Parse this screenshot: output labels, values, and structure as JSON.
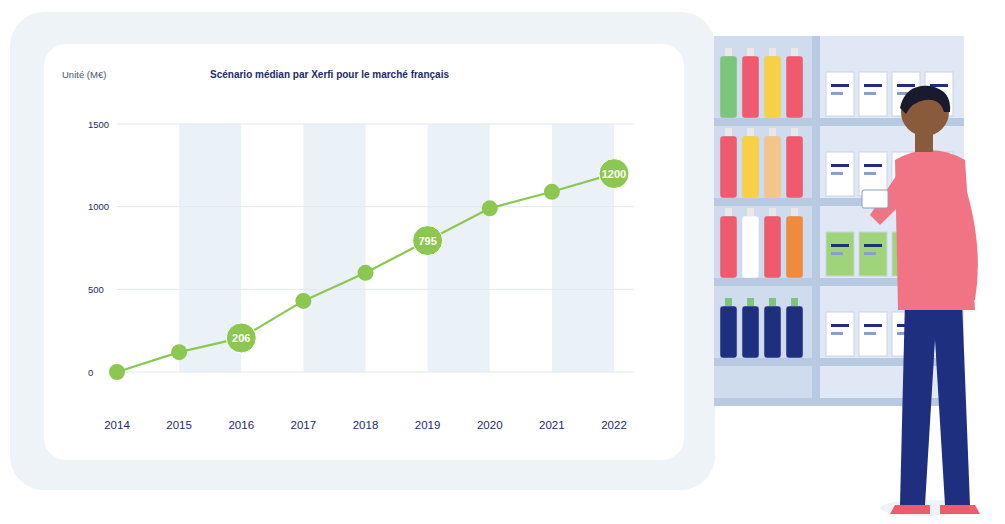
{
  "chart_data": {
    "type": "line",
    "title": "Scénario médian par Xerfi pour le marché français",
    "y_label": "Unité (M€)",
    "categories": [
      "2014",
      "2015",
      "2016",
      "2017",
      "2018",
      "2019",
      "2020",
      "2021",
      "2022"
    ],
    "values": [
      0,
      120,
      206,
      430,
      600,
      795,
      990,
      1090,
      1200
    ],
    "value_labels": [
      null,
      null,
      "206",
      null,
      null,
      "795",
      null,
      null,
      "1200"
    ],
    "color": "#8cc751",
    "marker": "circle",
    "ylim": [
      0,
      1500
    ],
    "yticks": [
      0,
      500,
      1000,
      1500
    ],
    "grid": true
  }
}
